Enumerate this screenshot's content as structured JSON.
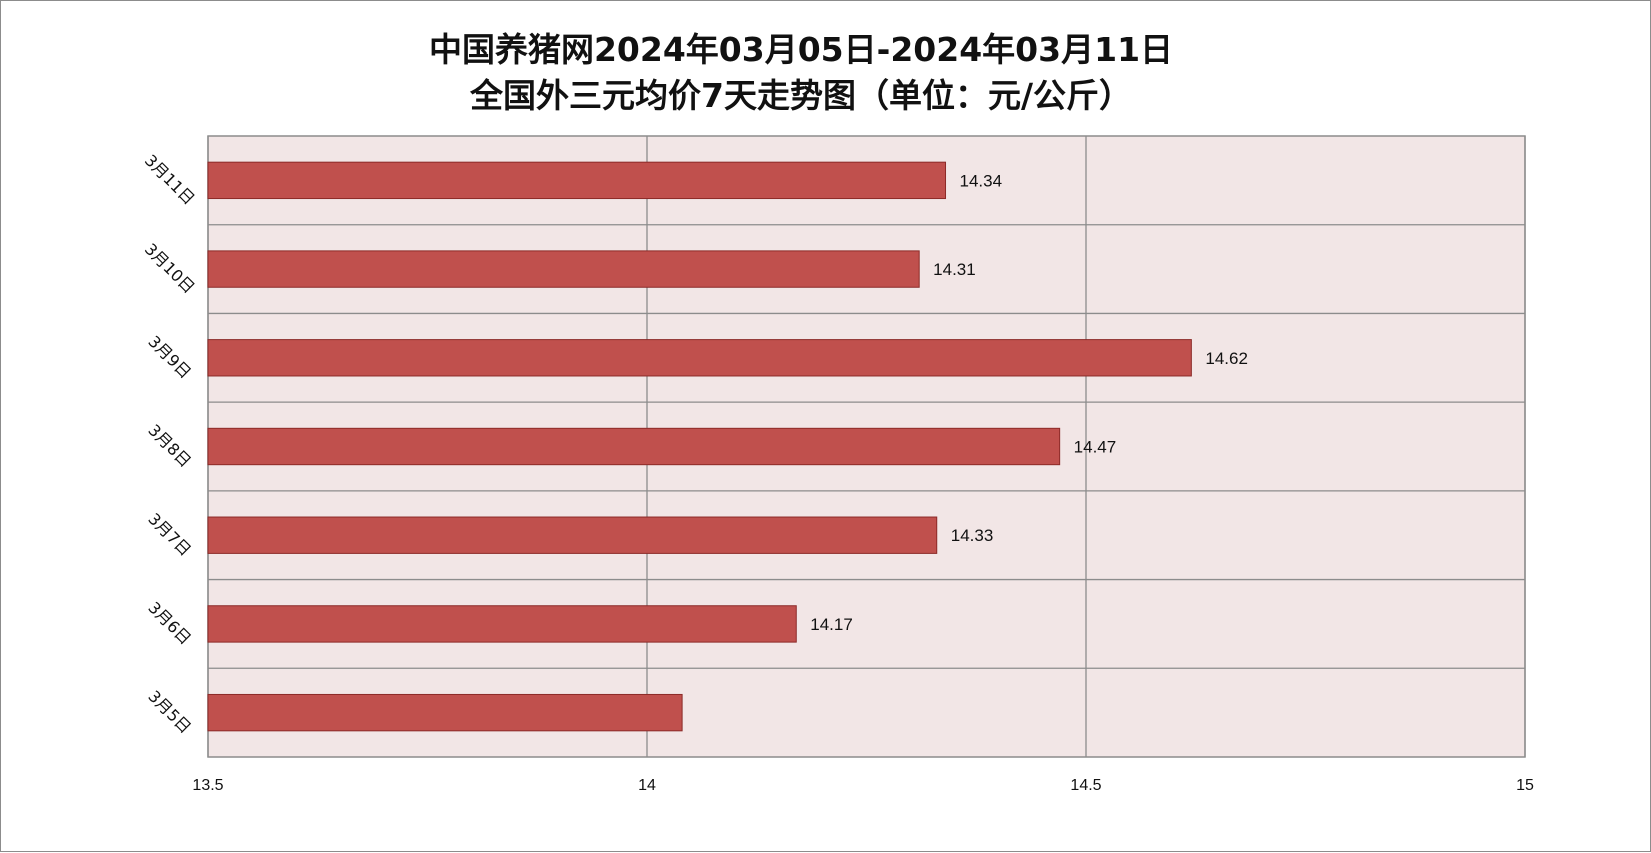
{
  "chart_data": {
    "type": "bar",
    "orientation": "horizontal",
    "title": [
      "中国养猪网2024年03月05日-2024年03月11日",
      "全国外三元均价7天走势图（单位：元/公斤）"
    ],
    "categories": [
      "3月5日",
      "3月6日",
      "3月7日",
      "3月8日",
      "3月9日",
      "3月10日",
      "3月11日"
    ],
    "values": [
      14.04,
      14.17,
      14.33,
      14.47,
      14.62,
      14.31,
      14.34
    ],
    "data_labels": [
      "",
      "14.17",
      "14.33",
      "14.47",
      "14.62",
      "14.31",
      "14.34"
    ],
    "x_ticks": [
      "13.5",
      "14",
      "14.5",
      "15"
    ],
    "xlim": [
      13.5,
      15
    ],
    "grid": true,
    "legend": "none",
    "colors": {
      "bar_fill": "#c0504d",
      "bar_stroke": "#8c2a28",
      "plot_background": "#f2e6e6",
      "grid": "#8c8c8c",
      "text": "#111111"
    }
  }
}
